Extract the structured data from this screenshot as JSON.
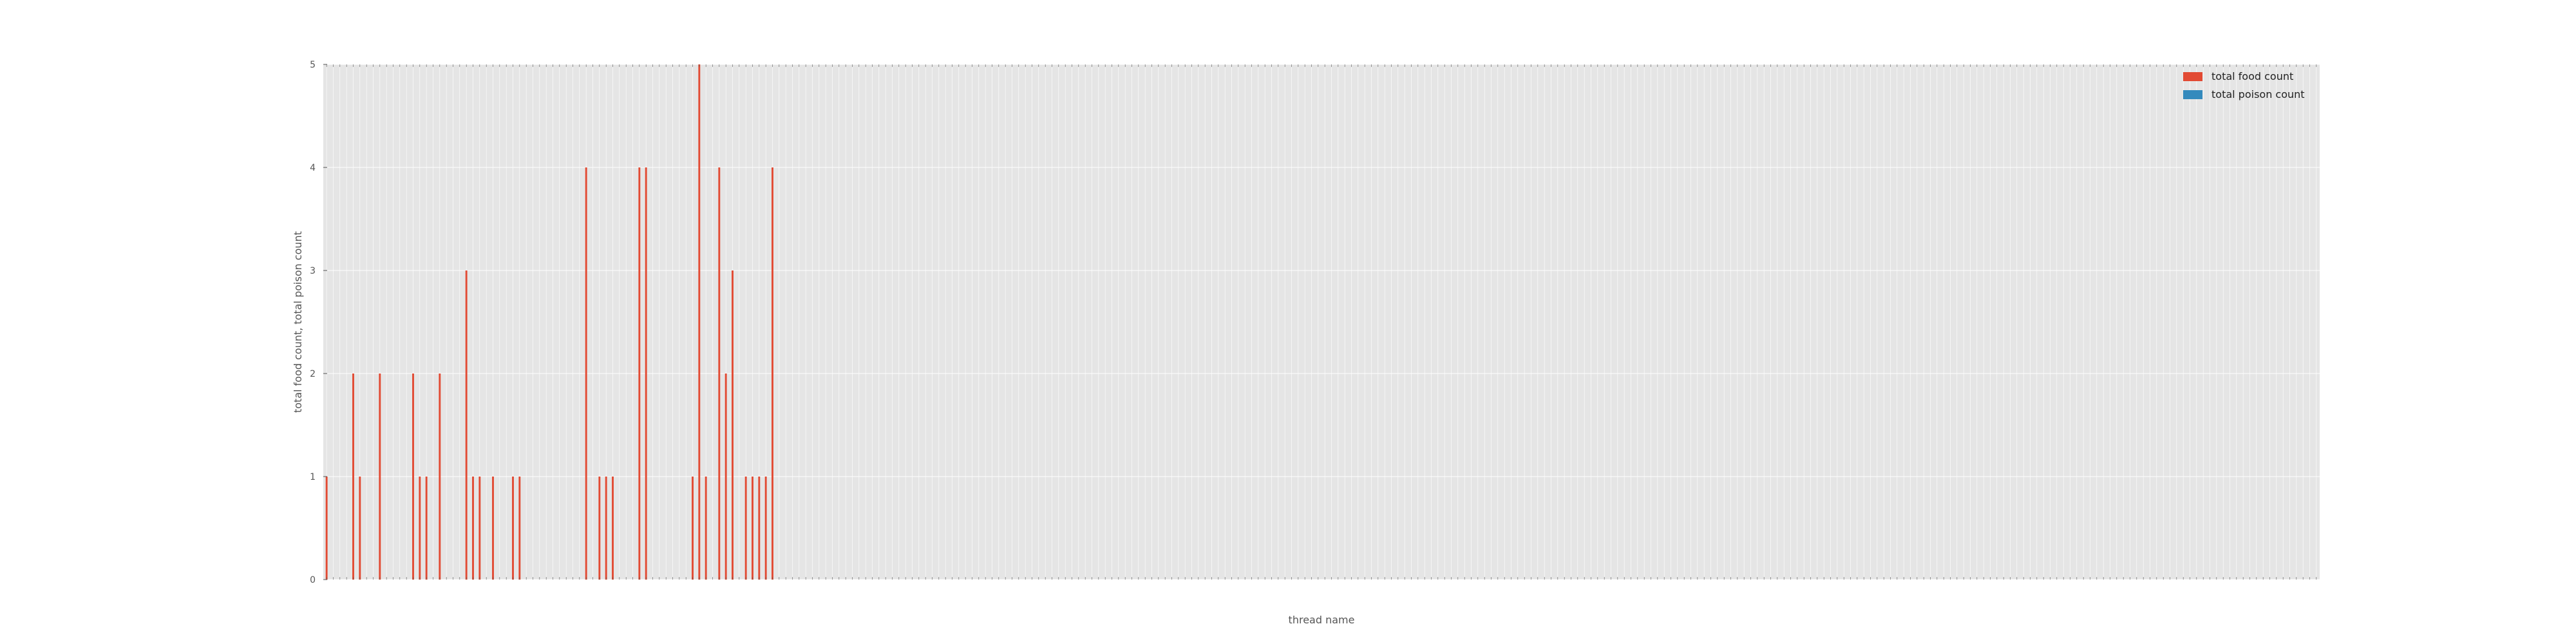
{
  "chart_data": {
    "type": "bar",
    "title": "",
    "xlabel": "thread name",
    "ylabel": "total food count, total poison count",
    "ylim": [
      0,
      5
    ],
    "yticks": [
      0,
      1,
      2,
      3,
      4,
      5
    ],
    "grid": true,
    "legend_position": "top-right",
    "colors": {
      "background": "#e5e5e5",
      "grid": "#ffffff",
      "total food count": "#e24a33",
      "total poison count": "#348abd"
    },
    "category_count": 300,
    "x_tick_labels_note": "",
    "series": [
      {
        "name": "total food count",
        "values": [
          1,
          0,
          0,
          0,
          2,
          1,
          0,
          0,
          2,
          0,
          0,
          0,
          0,
          2,
          1,
          1,
          0,
          2,
          0,
          0,
          0,
          3,
          1,
          1,
          0,
          1,
          0,
          0,
          1,
          1,
          0,
          0,
          0,
          0,
          0,
          0,
          0,
          0,
          0,
          4,
          0,
          1,
          1,
          1,
          0,
          0,
          0,
          4,
          4,
          0,
          0,
          0,
          0,
          0,
          0,
          1,
          5,
          1,
          0,
          4,
          2,
          3,
          0,
          1,
          1,
          1,
          1,
          4,
          0,
          0,
          0,
          0,
          0,
          0,
          0,
          0,
          0,
          0,
          0,
          0,
          0,
          0,
          0,
          0,
          0,
          0,
          0,
          0,
          0,
          0,
          0,
          0,
          0,
          0,
          0,
          0,
          0,
          0,
          0,
          0,
          0,
          0,
          0,
          0,
          0,
          0,
          0,
          0,
          0,
          0,
          0,
          0,
          0,
          0,
          0,
          0,
          0,
          0,
          0,
          0,
          0,
          0,
          0,
          0,
          0,
          0,
          0,
          0,
          0,
          0,
          0,
          0,
          0,
          0,
          0,
          0,
          0,
          0,
          0,
          0,
          0,
          0,
          0,
          0,
          0,
          0,
          0,
          0,
          0,
          0,
          0,
          0,
          0,
          0,
          0,
          0,
          0,
          0,
          0,
          0,
          0,
          0,
          0,
          0,
          0,
          0,
          0,
          0,
          0,
          0,
          0,
          0,
          0,
          0,
          0,
          0,
          0,
          0,
          0,
          0,
          0,
          0,
          0,
          0,
          0,
          0,
          0,
          0,
          0,
          0,
          0,
          0,
          0,
          0,
          0,
          0,
          0,
          0,
          0,
          0,
          0,
          0,
          0,
          0,
          0,
          0,
          0,
          0,
          0,
          0,
          0,
          0,
          0,
          0,
          0,
          0,
          0,
          0,
          0,
          0,
          0,
          0,
          0,
          0,
          0,
          0,
          0,
          0,
          0,
          0,
          0,
          0,
          0,
          0,
          0,
          0,
          0,
          0,
          0,
          0,
          0,
          0,
          0,
          0,
          0,
          0,
          0,
          0,
          0,
          0,
          0,
          0,
          0,
          0,
          0,
          0,
          0,
          0,
          0,
          0,
          0,
          0,
          0,
          0,
          0,
          0,
          0,
          0,
          0,
          0,
          0,
          0,
          0,
          0,
          0,
          0,
          0,
          0,
          0,
          0,
          0,
          0,
          0,
          0,
          0,
          0,
          0,
          0,
          0,
          0,
          0,
          0,
          0,
          0,
          0,
          0,
          0,
          0,
          0,
          0,
          0,
          0,
          0,
          0,
          0,
          0,
          0,
          0,
          0,
          0,
          0,
          0,
          0,
          0
        ]
      },
      {
        "name": "total poison count",
        "values": []
      }
    ]
  }
}
